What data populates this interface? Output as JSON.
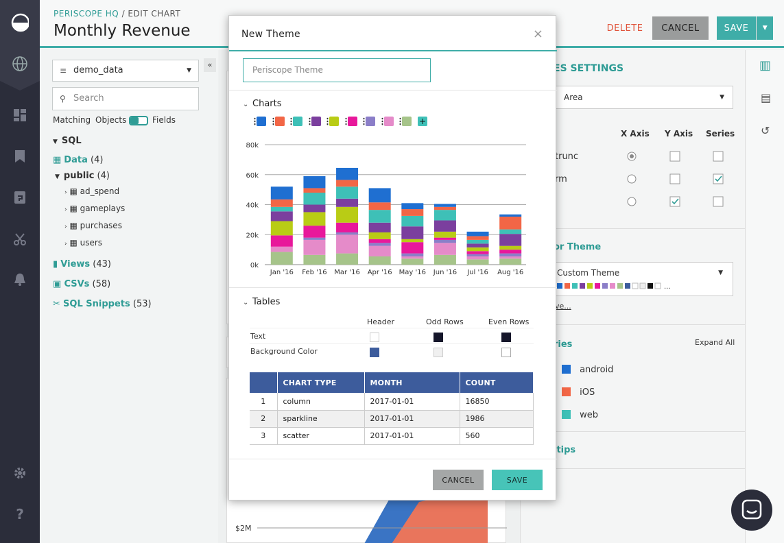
{
  "header": {
    "brand": "PERISCOPE HQ",
    "crumb_sep": " / ",
    "crumb_page": "EDIT CHART",
    "title": "Monthly Revenue",
    "delete_label": "DELETE",
    "cancel_label": "CANCEL",
    "save_label": "SAVE"
  },
  "sidebar": {
    "datasource": "demo_data",
    "search_placeholder": "Search",
    "matching_label": "Matching",
    "objects_label": "Objects",
    "fields_label": "Fields",
    "sql_label": "SQL",
    "data_label": "Data",
    "data_count": "(4)",
    "public_label": "public",
    "public_count": "(4)",
    "tables": [
      "ad_spend",
      "gameplays",
      "purchases",
      "users"
    ],
    "views_label": "Views",
    "views_count": "(43)",
    "csvs_label": "CSVs",
    "csvs_count": "(58)",
    "snippets_label": "SQL Snippets",
    "snippets_count": "(53)"
  },
  "right_panel": {
    "settings_title": "ES SETTINGS",
    "chart_type": "Area",
    "col_x": "X Axis",
    "col_y": "Y Axis",
    "col_series": "Series",
    "row1": "trunc",
    "row2": "rm",
    "color_theme_title": "or Theme",
    "theme_value": "Custom Theme",
    "theme_link": "ve...",
    "series_title": "ries",
    "expand_all": "Expand All",
    "series": [
      {
        "name": "android",
        "color": "#1f6fd1"
      },
      {
        "name": "iOS",
        "color": "#f26646"
      },
      {
        "name": "web",
        "color": "#3ec0b7"
      }
    ],
    "tooltips_title": "ltips"
  },
  "bg_chart": {
    "y_label": "$2M"
  },
  "modal": {
    "title": "New Theme",
    "close_glyph": "×",
    "name_placeholder": "Periscope Theme",
    "charts_label": "Charts",
    "add_glyph": "+",
    "palette": [
      "#1f6fd1",
      "#f26646",
      "#3ec0b7",
      "#7b3f9e",
      "#b9cc15",
      "#e8189b",
      "#8b7ec8",
      "#e58bc9",
      "#a6c48a"
    ],
    "tables_label": "Tables",
    "header_col": "Header",
    "odd_col": "Odd Rows",
    "even_col": "Even Rows",
    "text_row": "Text",
    "bg_row": "Background Color",
    "preview_table": {
      "columns": [
        "",
        "CHART TYPE",
        "MONTH",
        "COUNT"
      ],
      "rows": [
        [
          "1",
          "column",
          "2017-01-01",
          "16850"
        ],
        [
          "2",
          "sparkline",
          "2017-01-01",
          "1986"
        ],
        [
          "3",
          "scatter",
          "2017-01-01",
          "560"
        ]
      ]
    },
    "cancel_label": "CANCEL",
    "save_label": "SAVE"
  },
  "chart_data": {
    "type": "bar",
    "stacked": true,
    "categories": [
      "Jan '16",
      "Feb '16",
      "Mar '16",
      "Apr '16",
      "May '16",
      "Jun '16",
      "Jul '16",
      "Aug '16"
    ],
    "y_ticks": [
      "0k",
      "20k",
      "40k",
      "60k",
      "80k"
    ],
    "ylim": [
      0,
      80000
    ],
    "series": [
      {
        "color": "#a6c48a",
        "values": [
          8500,
          6500,
          7500,
          5500,
          4000,
          6500,
          3500,
          4000
        ]
      },
      {
        "color": "#e58bc9",
        "values": [
          3500,
          10000,
          12500,
          7000,
          1500,
          8000,
          2000,
          1500
        ]
      },
      {
        "color": "#8b7ec8",
        "values": [
          0,
          1500,
          1500,
          2000,
          2000,
          2000,
          1500,
          2000
        ]
      },
      {
        "color": "#e8189b",
        "values": [
          7500,
          8000,
          6500,
          2500,
          7500,
          1500,
          2000,
          2500
        ]
      },
      {
        "color": "#b9cc15",
        "values": [
          9500,
          9000,
          10500,
          4500,
          2000,
          4000,
          2500,
          2500
        ]
      },
      {
        "color": "#7b3f9e",
        "values": [
          6500,
          5000,
          5500,
          6500,
          8500,
          7500,
          2500,
          8000
        ]
      },
      {
        "color": "#3ec0b7",
        "values": [
          3000,
          8000,
          8000,
          8500,
          7000,
          7000,
          2500,
          3000
        ]
      },
      {
        "color": "#f26646",
        "values": [
          5000,
          3000,
          4500,
          5000,
          4500,
          2000,
          2500,
          8500
        ]
      },
      {
        "color": "#1f6fd1",
        "values": [
          8500,
          8000,
          8000,
          9500,
          4000,
          2000,
          3000,
          1500
        ]
      }
    ]
  }
}
